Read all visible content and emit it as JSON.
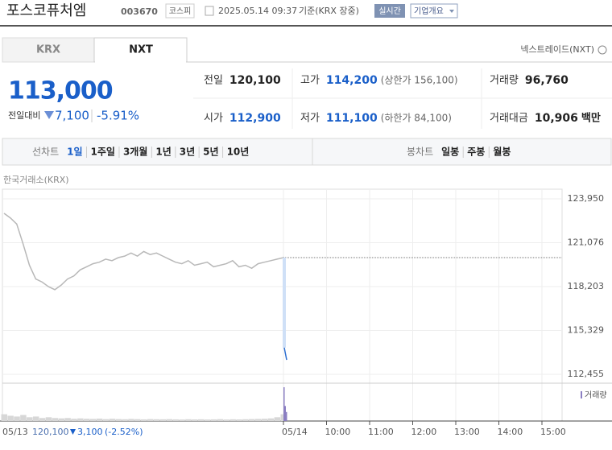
{
  "header": {
    "name": "포스코퓨처엠",
    "code": "003670",
    "market": "코스피",
    "datetime": "2025.05.14 09:37",
    "basis": "기준(KRX 장중)",
    "realtime": "실시간",
    "company": "기업개요"
  },
  "tabs": [
    "KRX",
    "NXT"
  ],
  "nxt_link": "넥스트레이드(NXT)",
  "quote": {
    "price": "113,000",
    "change_label": "전일대비",
    "change": "7,100",
    "rate": "-5.91%"
  },
  "stats": [
    {
      "label": "전일",
      "value": "120,100"
    },
    {
      "label": "고가",
      "value": "114,200",
      "note": "(상한가 156,100)"
    },
    {
      "label": "거래량",
      "value": "96,760"
    },
    {
      "label": "시가",
      "value": "112,900"
    },
    {
      "label": "저가",
      "value": "111,100",
      "note": "(하한가 84,100)"
    },
    {
      "label": "거래대금",
      "value": "10,906",
      "unit": "백만"
    }
  ],
  "periods": {
    "label": "선차트",
    "items": [
      "1일",
      "1주일",
      "3개월",
      "1년",
      "3년",
      "5년",
      "10년"
    ]
  },
  "candles": {
    "label": "봉차트",
    "items": [
      "일봉",
      "주봉",
      "월봉"
    ]
  },
  "chart": {
    "source": "한국거래소(KRX)",
    "ylim": [
      112455,
      123950
    ],
    "yticks": [
      {
        "value": 123950,
        "label": "123,950"
      },
      {
        "value": 121076,
        "label": "121,076"
      },
      {
        "value": 118203,
        "label": "118,203"
      },
      {
        "value": 115329,
        "label": "115,329"
      },
      {
        "value": 112455,
        "label": "112,455"
      }
    ],
    "reference": 120100,
    "prev_day": [
      123000,
      122700,
      122300,
      121000,
      119600,
      118700,
      118500,
      118200,
      118000,
      118300,
      118700,
      118900,
      119300,
      119500,
      119700,
      119800,
      120000,
      119900,
      120100,
      120200,
      120400,
      120200,
      120500,
      120300,
      120400,
      120200,
      120000,
      119800,
      119700,
      119900,
      119600,
      119700,
      119800,
      119500,
      119600,
      119700,
      119900,
      119500,
      119600,
      119400,
      119700,
      119800,
      119900,
      120000,
      120100
    ],
    "today": [
      114200,
      113800,
      113400
    ],
    "volume_label": "거래량",
    "prev_volume": [
      9000,
      7000,
      6000,
      8000,
      5000,
      6000,
      4000,
      5000,
      4000,
      3500,
      4000,
      3000,
      3500,
      3000,
      2800,
      3200,
      2500,
      3000,
      2600,
      2400,
      2800,
      2500,
      2200,
      2600,
      2400,
      2300,
      2500,
      2200,
      2000,
      2400,
      2100,
      2300,
      2000,
      2200,
      2500,
      2000,
      2300,
      2100,
      2400,
      2600,
      2800,
      3000,
      3500,
      5000,
      9000
    ],
    "today_volume": [
      45000,
      20000,
      12000
    ],
    "xticks": [
      "05/14",
      "10:00",
      "11:00",
      "12:00",
      "13:00",
      "14:00",
      "15:00"
    ],
    "footer": {
      "date": "05/13",
      "close": "120,100",
      "change": "3,100",
      "rate": "(-2.52%)"
    }
  }
}
